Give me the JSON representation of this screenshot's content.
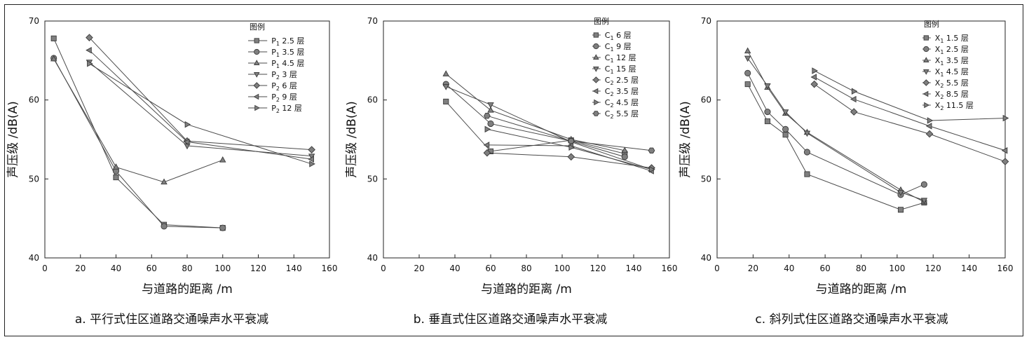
{
  "chart_data": [
    {
      "type": "line",
      "caption": "a. 平行式住区道路交通噪声水平衰减",
      "xlabel": "与道路的距离 /m",
      "ylabel": "声压级 /dB(A)",
      "xlim": [
        0,
        160
      ],
      "ylim": [
        40,
        70
      ],
      "xticks": [
        "0",
        "20",
        "40",
        "60",
        "80",
        "100",
        "120",
        "140",
        "160"
      ],
      "yticks": [
        "40",
        "50",
        "60",
        "70"
      ],
      "legend_title": "图例",
      "legend_position": "top-right",
      "series": [
        {
          "name": "P1 2.5 层",
          "marker": "square",
          "x": [
            5,
            40,
            67,
            100
          ],
          "y": [
            67.8,
            50.2,
            44.2,
            43.8
          ]
        },
        {
          "name": "P1 3.5 层",
          "marker": "circle",
          "x": [
            5,
            40,
            67,
            100
          ],
          "y": [
            65.3,
            51.0,
            44.0,
            43.8
          ]
        },
        {
          "name": "P1 4.5 层",
          "marker": "triangle-up",
          "x": [
            5,
            40,
            67,
            100
          ],
          "y": [
            65.2,
            51.5,
            49.6,
            52.4
          ]
        },
        {
          "name": "P2 3 层",
          "marker": "triangle-down",
          "x": [
            25,
            80,
            150
          ],
          "y": [
            64.8,
            54.2,
            52.9
          ]
        },
        {
          "name": "P2 6 层",
          "marker": "diamond",
          "x": [
            25,
            80,
            150
          ],
          "y": [
            67.9,
            54.8,
            53.7
          ]
        },
        {
          "name": "P2 9 层",
          "marker": "triangle-left",
          "x": [
            25,
            80,
            150
          ],
          "y": [
            66.3,
            54.7,
            52.5
          ]
        },
        {
          "name": "P2 12 层",
          "marker": "triangle-right",
          "x": [
            25,
            80,
            150
          ],
          "y": [
            64.6,
            56.9,
            51.9
          ]
        }
      ]
    },
    {
      "type": "line",
      "caption": "b. 垂直式住区道路交通噪声水平衰减",
      "xlabel": "与道路的距离 /m",
      "ylabel": "声压级 /dB(A)",
      "xlim": [
        0,
        160
      ],
      "ylim": [
        40,
        70
      ],
      "xticks": [
        "0",
        "20",
        "40",
        "60",
        "80",
        "100",
        "120",
        "140",
        "160"
      ],
      "yticks": [
        "40",
        "50",
        "60",
        "70"
      ],
      "legend_title": "图例",
      "legend_position": "top-right",
      "series": [
        {
          "name": "C1 6 层",
          "marker": "square",
          "x": [
            35,
            60,
            105,
            135
          ],
          "y": [
            59.8,
            53.5,
            54.9,
            53.2
          ]
        },
        {
          "name": "C1 9 层",
          "marker": "circle",
          "x": [
            35,
            60,
            105,
            135
          ],
          "y": [
            62.0,
            57.0,
            54.8,
            52.8
          ]
        },
        {
          "name": "C1 12 层",
          "marker": "triangle-up",
          "x": [
            35,
            60,
            105,
            135
          ],
          "y": [
            63.3,
            58.7,
            55.0,
            53.6
          ]
        },
        {
          "name": "C1 15 层",
          "marker": "triangle-down",
          "x": [
            35,
            60,
            105,
            150
          ],
          "y": [
            61.7,
            59.4,
            54.7,
            51.2
          ]
        },
        {
          "name": "C2 2.5 层",
          "marker": "diamond",
          "x": [
            58,
            105,
            150
          ],
          "y": [
            53.3,
            52.8,
            51.4
          ]
        },
        {
          "name": "C2 3.5 层",
          "marker": "triangle-left",
          "x": [
            58,
            105,
            150
          ],
          "y": [
            54.3,
            54.2,
            51.0
          ]
        },
        {
          "name": "C2 4.5 层",
          "marker": "triangle-right",
          "x": [
            58,
            105,
            150
          ],
          "y": [
            56.3,
            54.0,
            51.2
          ]
        },
        {
          "name": "C2 5.5 层",
          "marker": "hexagon",
          "x": [
            58,
            105,
            150
          ],
          "y": [
            58.0,
            54.8,
            53.6
          ]
        }
      ]
    },
    {
      "type": "line",
      "caption": "c. 斜列式住区道路交通噪声水平衰减",
      "xlabel": "与道路的距离 /m",
      "ylabel": "声压级 /dB(A)",
      "xlim": [
        0,
        160
      ],
      "ylim": [
        40,
        70
      ],
      "xticks": [
        "0",
        "20",
        "40",
        "60",
        "80",
        "100",
        "120",
        "140",
        "160"
      ],
      "yticks": [
        "40",
        "50",
        "60",
        "70"
      ],
      "legend_title": "图例",
      "legend_position": "top-right",
      "series": [
        {
          "name": "X1 1.5 层",
          "marker": "square",
          "x": [
            17,
            28,
            38,
            50,
            102,
            115
          ],
          "y": [
            62.0,
            57.3,
            55.6,
            50.6,
            46.1,
            47.0
          ]
        },
        {
          "name": "X1 2.5 层",
          "marker": "circle",
          "x": [
            17,
            28,
            38,
            50,
            102,
            115
          ],
          "y": [
            63.4,
            58.5,
            56.3,
            53.4,
            48.0,
            49.3
          ]
        },
        {
          "name": "X1 3.5 层",
          "marker": "triangle-up",
          "x": [
            17,
            28,
            38,
            50,
            102,
            115
          ],
          "y": [
            66.2,
            61.6,
            58.3,
            55.9,
            48.6,
            47.1
          ]
        },
        {
          "name": "X1 4.5 层",
          "marker": "triangle-down",
          "x": [
            17,
            28,
            38,
            50,
            102,
            115
          ],
          "y": [
            65.3,
            61.8,
            58.5,
            55.8,
            48.3,
            47.3
          ]
        },
        {
          "name": "X2 5.5 层",
          "marker": "diamond",
          "x": [
            54,
            76,
            118,
            160
          ],
          "y": [
            62.0,
            58.5,
            55.7,
            52.2
          ]
        },
        {
          "name": "X2 8.5 层",
          "marker": "triangle-left",
          "x": [
            54,
            76,
            118,
            160
          ],
          "y": [
            62.9,
            60.1,
            56.7,
            53.6
          ]
        },
        {
          "name": "X2 11.5 层",
          "marker": "triangle-right",
          "x": [
            54,
            76,
            118,
            160
          ],
          "y": [
            63.7,
            61.1,
            57.4,
            57.7
          ]
        }
      ]
    }
  ]
}
